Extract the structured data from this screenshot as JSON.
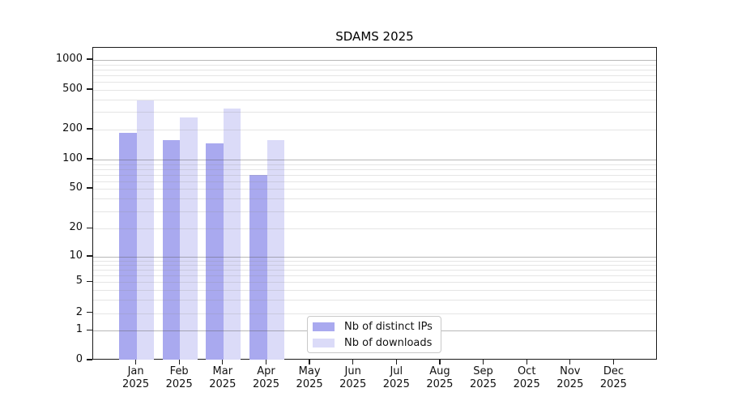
{
  "title": "SDAMS 2025",
  "chart_data": {
    "type": "bar",
    "title": "SDAMS 2025",
    "categories": [
      "Jan 2025",
      "Feb 2025",
      "Mar 2025",
      "Apr 2025",
      "May 2025",
      "Jun 2025",
      "Jul 2025",
      "Aug 2025",
      "Sep 2025",
      "Oct 2025",
      "Nov 2025",
      "Dec 2025"
    ],
    "series": [
      {
        "name": "Nb of distinct IPs",
        "color": "#a9a9ef",
        "values": [
          185,
          158,
          145,
          70,
          null,
          null,
          null,
          null,
          null,
          null,
          null,
          null
        ]
      },
      {
        "name": "Nb of downloads",
        "color": "#dbdbf8",
        "values": [
          390,
          265,
          325,
          158,
          null,
          null,
          null,
          null,
          null,
          null,
          null,
          null
        ]
      }
    ],
    "yscale": "log (with 0 baseline)",
    "ylim": [
      0,
      1000
    ],
    "yticks": [
      0,
      1,
      2,
      5,
      10,
      20,
      50,
      100,
      200,
      500,
      1000
    ],
    "grid": "horizontal only; dark major lines at 1,10,100,1000; light minor lines at 2-9 multiples",
    "legend_position": "inside plot, lower center"
  },
  "colors": {
    "bar_distinct_ips": "#a9a9ef",
    "bar_downloads": "#dbdbf8",
    "grid_major": "#b5b5b5",
    "grid_minor": "#e5e5e5",
    "axis": "#1a1a1a",
    "background": "#ffffff",
    "text": "#111111"
  }
}
